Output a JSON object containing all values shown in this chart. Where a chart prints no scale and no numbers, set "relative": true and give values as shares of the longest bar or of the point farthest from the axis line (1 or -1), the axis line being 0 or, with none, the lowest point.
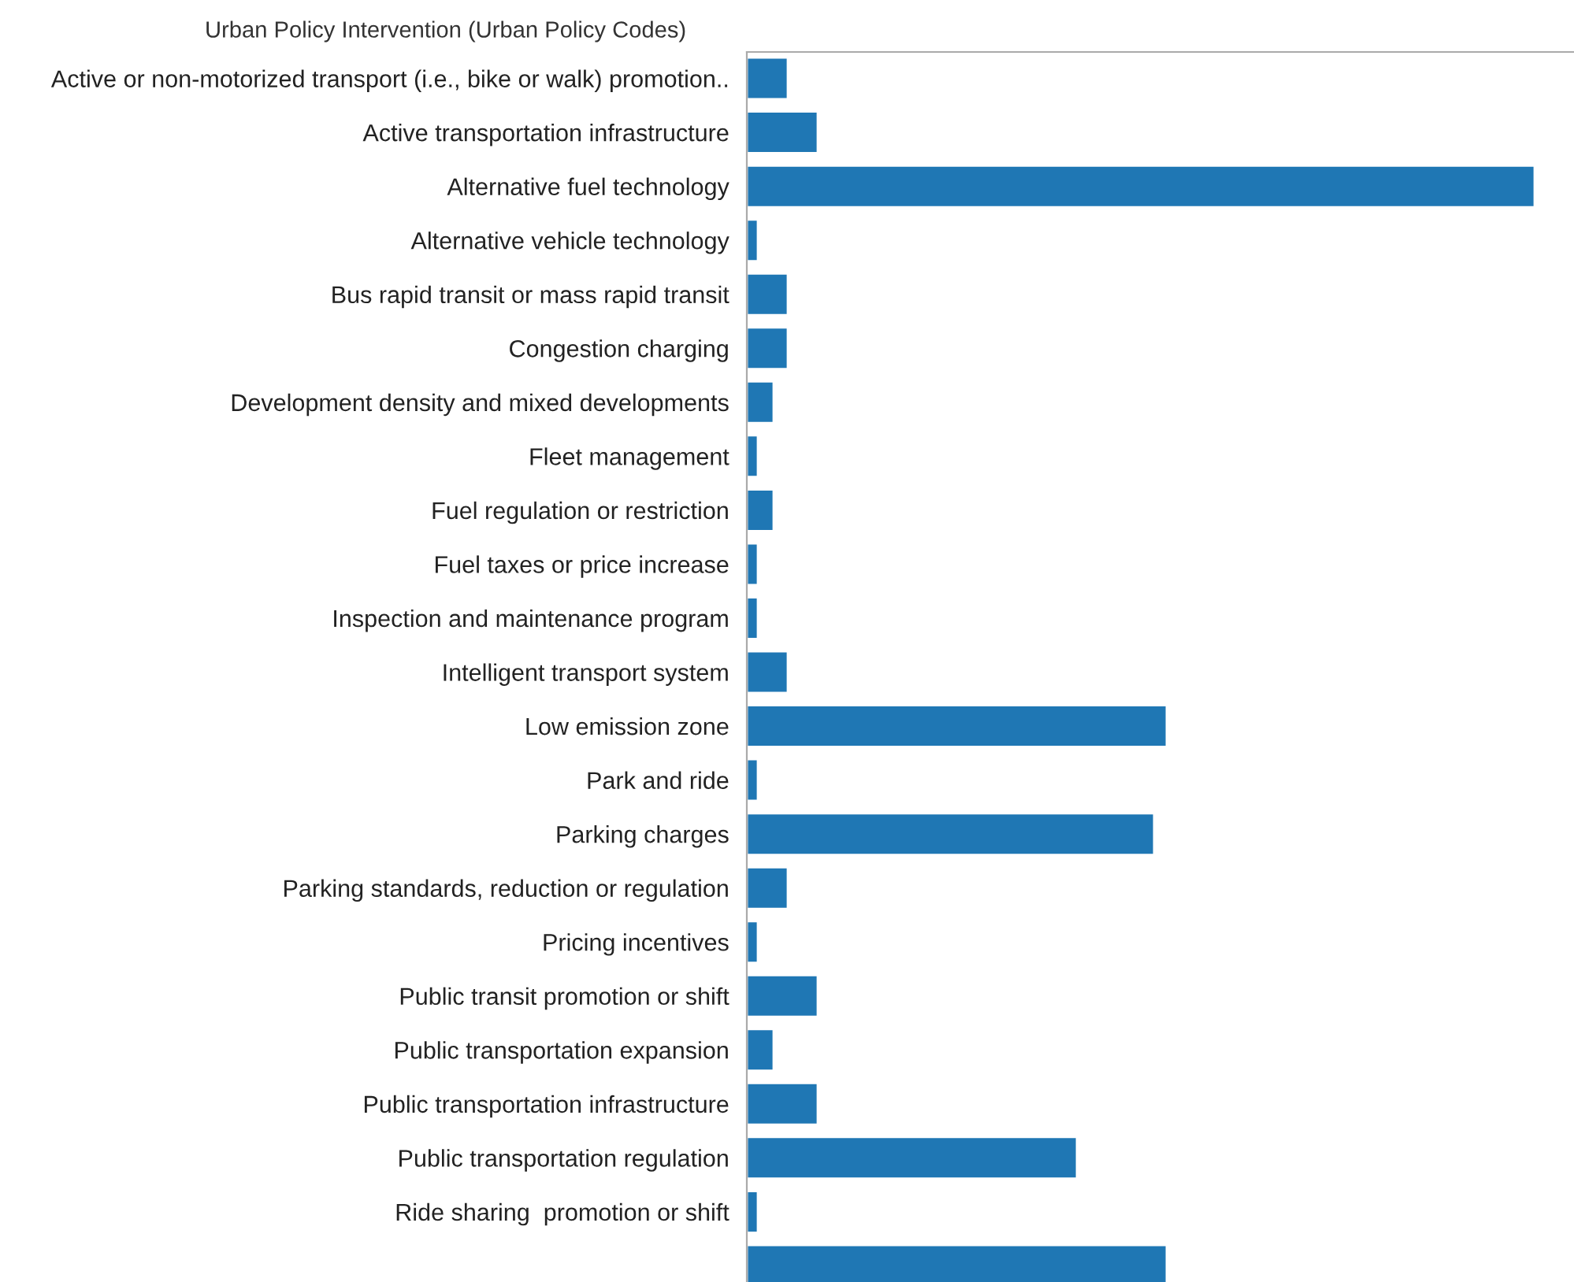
{
  "chart_data": {
    "type": "bar",
    "orientation": "horizontal",
    "relative": true,
    "ylabel": "Urban Policy Intervention (Urban Policy Codes)",
    "categories": [
      "Active or non-motorized transport (i.e., bike or walk) promotion..",
      "Active transportation infrastructure",
      "Alternative fuel technology",
      "Alternative vehicle technology",
      "Bus rapid transit or mass rapid transit",
      "Congestion charging",
      "Development density and mixed developments",
      "Fleet management",
      "Fuel regulation or restriction",
      "Fuel taxes or price increase",
      "Inspection and maintenance program",
      "Intelligent transport system",
      "Low emission zone",
      "Park and ride",
      "Parking charges",
      "Parking standards, reduction or regulation",
      "Pricing incentives",
      "Public transit promotion or shift",
      "Public transportation expansion",
      "Public transportation infrastructure",
      "Public transportation regulation",
      "Ride sharing  promotion or shift",
      null
    ],
    "series": [
      {
        "color": "#1f77b4",
        "values": [
          0.052,
          0.09,
          1,
          0.014,
          0.052,
          0.052,
          0.034,
          0.014,
          0.034,
          0.014,
          0.014,
          0.052,
          0.533,
          0.014,
          0.517,
          0.052,
          0.014,
          0.09,
          0.034,
          0.09,
          0.419,
          0.014,
          0.533
        ]
      }
    ],
    "grid": false,
    "legend": false
  }
}
